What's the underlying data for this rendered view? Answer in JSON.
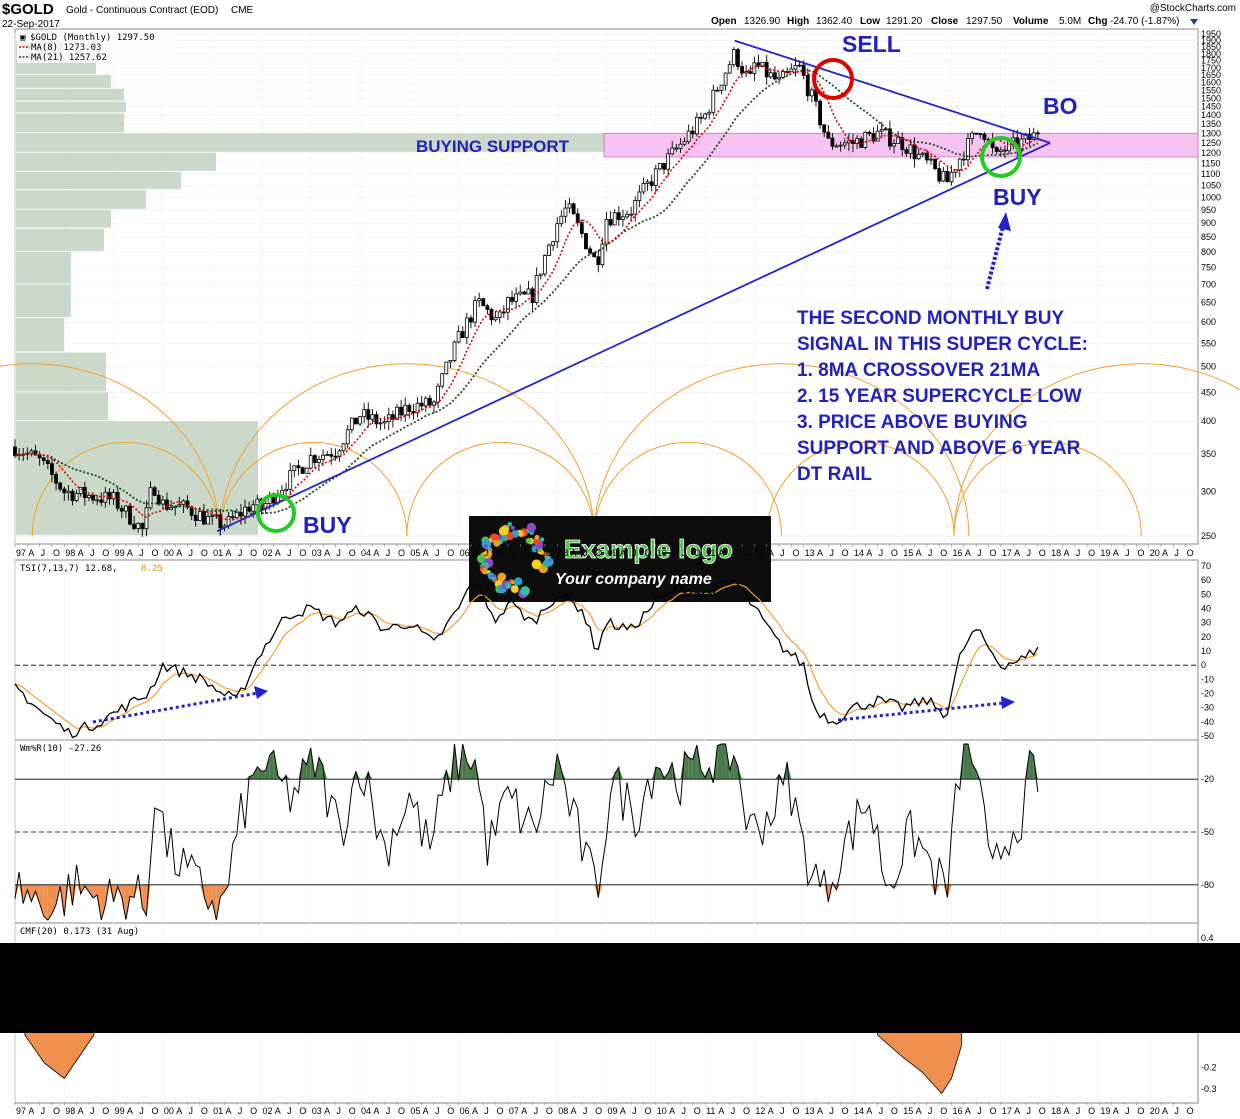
{
  "header": {
    "symbol": "$GOLD",
    "name": "Gold - Continuous Contract (EOD)",
    "exchange": "CME",
    "date": "22-Sep-2017",
    "watermark": "@StockCharts.com",
    "open_label": "Open",
    "open": "1326.90",
    "high_label": "High",
    "high": "1362.40",
    "low_label": "Low",
    "low": "1291.20",
    "close_label": "Close",
    "close": "1297.50",
    "volume_label": "Volume",
    "volume": "5.0M",
    "chg_label": "Chg",
    "chg": "-24.70 (-1.87%)"
  },
  "legend": {
    "price": "$GOLD (Monthly) 1297.50",
    "ma8": "MA(8) 1273.03",
    "ma21": "MA(21) 1257.62",
    "tsi": "TSI(7,13,7) 12.68,",
    "tsi_signal": "8.25",
    "wmr": "Wm%R(10) -27.26",
    "cmf": "CMF(20) 0.173 (31 Aug)"
  },
  "annotations": {
    "sell": "SELL",
    "bo": "BO",
    "buy_right": "BUY",
    "buy_left": "BUY",
    "support": "BUYING SUPPORT",
    "note": [
      "THE SECOND MONTHLY BUY",
      "SIGNAL IN THIS SUPER CYCLE:",
      "1. 8MA CROSSOVER 21MA",
      "2. 15 YEAR SUPERCYCLE LOW",
      "3. PRICE ABOVE BUYING",
      "SUPPORT AND ABOVE 6 YEAR",
      "DT RAIL"
    ]
  },
  "logo": {
    "title": "Example logo",
    "subtitle": "Your company name"
  },
  "colors": {
    "ma8": "#dd0000",
    "ma21": "#1f4d1f",
    "trendline": "#2222cc",
    "support_zone": "#f5b8f0",
    "volume_profile": "#b8ccb8",
    "cycle_arcs": "#f0a030",
    "circle_sell": "#dd0000",
    "circle_buy": "#22cc22",
    "tsi_signal": "#f0a030",
    "wmr_fill_top": "#4a7a4a",
    "wmr_fill_bottom": "#f09050",
    "cmf_fill": "#f09050",
    "annotation": "#2222bb"
  },
  "chart_data": [
    {
      "type": "candlestick",
      "panel": "price",
      "y_scale": "log",
      "ylim": [
        245,
        1960
      ],
      "y_ticks": [
        1950,
        1900,
        1850,
        1800,
        1750,
        1700,
        1650,
        1600,
        1550,
        1500,
        1450,
        1400,
        1350,
        1300,
        1250,
        1200,
        1150,
        1100,
        1050,
        1000,
        950,
        900,
        850,
        800,
        750,
        700,
        650,
        600,
        550,
        500,
        450,
        400,
        350,
        300,
        250
      ],
      "x_labels": [
        "97",
        "A",
        "J",
        "O",
        "98",
        "A",
        "J",
        "O",
        "99",
        "A",
        "J",
        "O",
        "00",
        "A",
        "J",
        "O",
        "01",
        "A",
        "J",
        "O",
        "02",
        "A",
        "J",
        "O",
        "03",
        "A",
        "J",
        "O",
        "04",
        "A",
        "J",
        "O",
        "05",
        "A",
        "J",
        "O",
        "06",
        "A",
        "J",
        "O",
        "07",
        "A",
        "J",
        "O",
        "08",
        "A",
        "J",
        "O",
        "09",
        "A",
        "J",
        "O",
        "10",
        "A",
        "J",
        "O",
        "11",
        "A",
        "J",
        "O",
        "12",
        "A",
        "J",
        "O",
        "13",
        "A",
        "J",
        "O",
        "14",
        "A",
        "J",
        "O",
        "15",
        "A",
        "J",
        "O",
        "16",
        "A",
        "J",
        "O",
        "17",
        "A",
        "J",
        "O",
        "18",
        "A",
        "J",
        "O",
        "19",
        "A",
        "J",
        "O",
        "20",
        "A",
        "J",
        "O"
      ],
      "x_range": [
        1997.0,
        2021.0
      ],
      "anchors": [
        [
          1997.0,
          360
        ],
        [
          1997.5,
          340
        ],
        [
          1998.0,
          300
        ],
        [
          1998.5,
          295
        ],
        [
          1999.0,
          290
        ],
        [
          1999.6,
          255
        ],
        [
          1999.8,
          310
        ],
        [
          2000.0,
          285
        ],
        [
          2000.5,
          280
        ],
        [
          2001.0,
          265
        ],
        [
          2001.3,
          262
        ],
        [
          2001.8,
          285
        ],
        [
          2002.0,
          280
        ],
        [
          2002.5,
          312
        ],
        [
          2003.0,
          345
        ],
        [
          2003.5,
          355
        ],
        [
          2004.0,
          410
        ],
        [
          2004.5,
          395
        ],
        [
          2005.0,
          425
        ],
        [
          2005.5,
          430
        ],
        [
          2006.0,
          560
        ],
        [
          2006.4,
          650
        ],
        [
          2006.8,
          600
        ],
        [
          2007.0,
          650
        ],
        [
          2007.5,
          670
        ],
        [
          2008.0,
          900
        ],
        [
          2008.2,
          960
        ],
        [
          2008.8,
          760
        ],
        [
          2009.0,
          920
        ],
        [
          2009.5,
          950
        ],
        [
          2010.0,
          1100
        ],
        [
          2010.5,
          1240
        ],
        [
          2011.0,
          1400
        ],
        [
          2011.6,
          1800
        ],
        [
          2011.9,
          1600
        ],
        [
          2012.0,
          1720
        ],
        [
          2012.5,
          1600
        ],
        [
          2012.9,
          1710
        ],
        [
          2013.3,
          1400
        ],
        [
          2013.5,
          1250
        ],
        [
          2014.0,
          1250
        ],
        [
          2014.5,
          1300
        ],
        [
          2015.0,
          1250
        ],
        [
          2015.5,
          1150
        ],
        [
          2015.9,
          1060
        ],
        [
          2016.1,
          1150
        ],
        [
          2016.6,
          1340
        ],
        [
          2016.9,
          1170
        ],
        [
          2017.0,
          1210
        ],
        [
          2017.5,
          1260
        ],
        [
          2017.75,
          1297.5
        ]
      ],
      "ma8_last": 1273.03,
      "ma21_last": 1257.62,
      "last_close": 1297.5,
      "support_zone": [
        1180,
        1300
      ],
      "trendlines": {
        "up": [
          [
            2001.1,
            255
          ],
          [
            2018.0,
            1250
          ]
        ],
        "down": [
          [
            2011.6,
            1900
          ],
          [
            2018.0,
            1250
          ]
        ]
      }
    },
    {
      "type": "line",
      "panel": "indicator",
      "name": "TSI(7,13,7)",
      "ylim": [
        -50,
        70
      ],
      "y_ticks": [
        70,
        60,
        50,
        40,
        30,
        20,
        10,
        0,
        -10,
        -20,
        -30,
        -40,
        -50
      ],
      "last_value": 12.68,
      "signal_last": 8.25,
      "anchors": [
        [
          1997.0,
          -15
        ],
        [
          1997.6,
          -35
        ],
        [
          1998.1,
          -48
        ],
        [
          1998.6,
          -42
        ],
        [
          1999.2,
          -30
        ],
        [
          1999.7,
          -20
        ],
        [
          2000.0,
          0
        ],
        [
          2000.8,
          -10
        ],
        [
          2001.2,
          -20
        ],
        [
          2001.5,
          -25
        ],
        [
          2002.0,
          10
        ],
        [
          2002.5,
          35
        ],
        [
          2003.0,
          40
        ],
        [
          2003.5,
          30
        ],
        [
          2004.0,
          40
        ],
        [
          2004.5,
          25
        ],
        [
          2005.0,
          30
        ],
        [
          2005.5,
          15
        ],
        [
          2006.0,
          40
        ],
        [
          2006.3,
          60
        ],
        [
          2006.8,
          30
        ],
        [
          2007.0,
          45
        ],
        [
          2007.5,
          30
        ],
        [
          2008.0,
          50
        ],
        [
          2008.5,
          40
        ],
        [
          2008.8,
          10
        ],
        [
          2009.0,
          30
        ],
        [
          2009.5,
          25
        ],
        [
          2010.0,
          45
        ],
        [
          2010.5,
          55
        ],
        [
          2011.0,
          50
        ],
        [
          2011.6,
          60
        ],
        [
          2012.0,
          40
        ],
        [
          2012.5,
          15
        ],
        [
          2013.0,
          0
        ],
        [
          2013.2,
          -30
        ],
        [
          2013.6,
          -40
        ],
        [
          2014.0,
          -30
        ],
        [
          2014.5,
          -25
        ],
        [
          2015.0,
          -30
        ],
        [
          2015.5,
          -25
        ],
        [
          2015.9,
          -35
        ],
        [
          2016.2,
          10
        ],
        [
          2016.5,
          25
        ],
        [
          2016.8,
          10
        ],
        [
          2017.0,
          0
        ],
        [
          2017.5,
          5
        ],
        [
          2017.75,
          12.68
        ]
      ]
    },
    {
      "type": "line",
      "panel": "indicator",
      "name": "Wm%R(10)",
      "ylim": [
        -100,
        0
      ],
      "y_ticks": [
        -20,
        -50,
        -80
      ],
      "last_value": -27.26,
      "anchors": [
        [
          1997.0,
          -80
        ],
        [
          1997.7,
          -95
        ],
        [
          1998.2,
          -80
        ],
        [
          1998.8,
          -90
        ],
        [
          1999.4,
          -85
        ],
        [
          1999.7,
          -95
        ],
        [
          1999.8,
          -20
        ],
        [
          2000.1,
          -60
        ],
        [
          2000.7,
          -80
        ],
        [
          2001.2,
          -95
        ],
        [
          2001.6,
          -40
        ],
        [
          2002.0,
          -10
        ],
        [
          2002.6,
          -30
        ],
        [
          2003.1,
          -10
        ],
        [
          2003.6,
          -50
        ],
        [
          2004.0,
          -10
        ],
        [
          2004.5,
          -60
        ],
        [
          2005.0,
          -30
        ],
        [
          2005.4,
          -60
        ],
        [
          2005.9,
          -10
        ],
        [
          2006.3,
          -5
        ],
        [
          2006.6,
          -60
        ],
        [
          2007.0,
          -30
        ],
        [
          2007.5,
          -50
        ],
        [
          2008.0,
          -10
        ],
        [
          2008.3,
          -40
        ],
        [
          2008.8,
          -85
        ],
        [
          2009.1,
          -20
        ],
        [
          2009.6,
          -40
        ],
        [
          2010.0,
          -10
        ],
        [
          2010.5,
          -20
        ],
        [
          2011.0,
          -10
        ],
        [
          2011.6,
          -5
        ],
        [
          2011.9,
          -50
        ],
        [
          2012.3,
          -40
        ],
        [
          2012.7,
          -20
        ],
        [
          2013.0,
          -60
        ],
        [
          2013.4,
          -85
        ],
        [
          2013.8,
          -60
        ],
        [
          2014.3,
          -30
        ],
        [
          2014.7,
          -80
        ],
        [
          2015.2,
          -50
        ],
        [
          2015.6,
          -70
        ],
        [
          2015.9,
          -85
        ],
        [
          2016.2,
          -5
        ],
        [
          2016.5,
          -10
        ],
        [
          2016.8,
          -80
        ],
        [
          2017.0,
          -60
        ],
        [
          2017.5,
          -35
        ],
        [
          2017.6,
          -10
        ],
        [
          2017.75,
          -27.26
        ]
      ]
    },
    {
      "type": "area",
      "panel": "indicator",
      "name": "CMF(20)",
      "ylim": [
        -0.35,
        0.45
      ],
      "y_ticks": [
        0.4,
        -0.2,
        -0.3
      ],
      "last_value": 0.173,
      "visible_fragments": [
        [
          [
            1997.2,
            -0.05
          ],
          [
            1997.6,
            -0.18
          ],
          [
            1998.0,
            -0.25
          ],
          [
            1998.3,
            -0.15
          ],
          [
            1998.6,
            -0.05
          ]
        ],
        [
          [
            2014.5,
            -0.05
          ],
          [
            2015.0,
            -0.15
          ],
          [
            2015.4,
            -0.22
          ],
          [
            2015.8,
            -0.32
          ],
          [
            2016.0,
            -0.25
          ],
          [
            2016.2,
            -0.1
          ]
        ]
      ]
    }
  ]
}
